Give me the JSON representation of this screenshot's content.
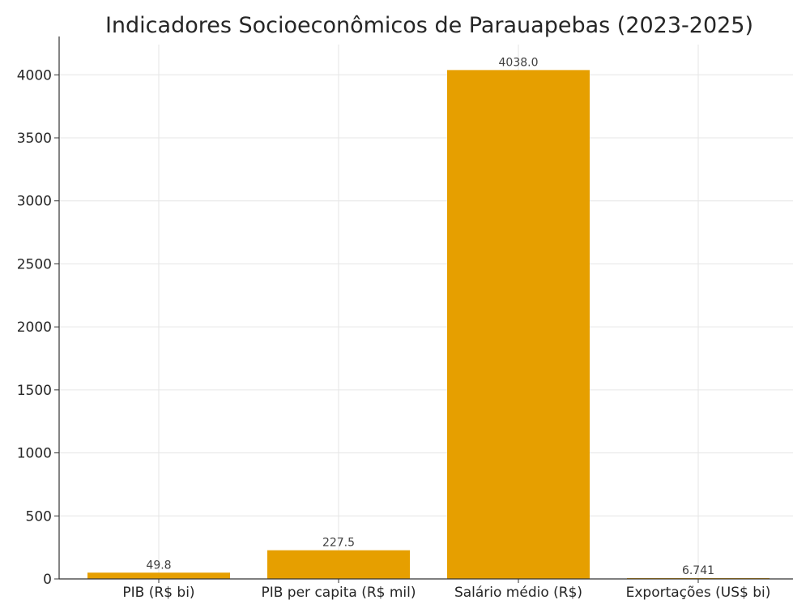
{
  "chart_data": {
    "type": "bar",
    "title": "Indicadores Socioeconômicos de Parauapebas (2023-2025)",
    "xlabel": "",
    "ylabel": "",
    "categories": [
      "PIB (R$ bi)",
      "PIB per capita (R$ mil)",
      "Salário médio (R$)",
      "Exportações (US$ bi)"
    ],
    "values": [
      49.8,
      227.5,
      4038.0,
      6.741
    ],
    "value_labels": [
      "49.8",
      "227.5",
      "4038.0",
      "6.741"
    ],
    "ylim": [
      0,
      4240
    ],
    "yticks": [
      0,
      500,
      1000,
      1500,
      2000,
      2500,
      3000,
      3500,
      4000
    ],
    "ytick_labels": [
      "0",
      "500",
      "1000",
      "1500",
      "2000",
      "2500",
      "3000",
      "3500",
      "4000"
    ],
    "bar_color": "#E69F00",
    "grid": true,
    "legend": "none"
  }
}
